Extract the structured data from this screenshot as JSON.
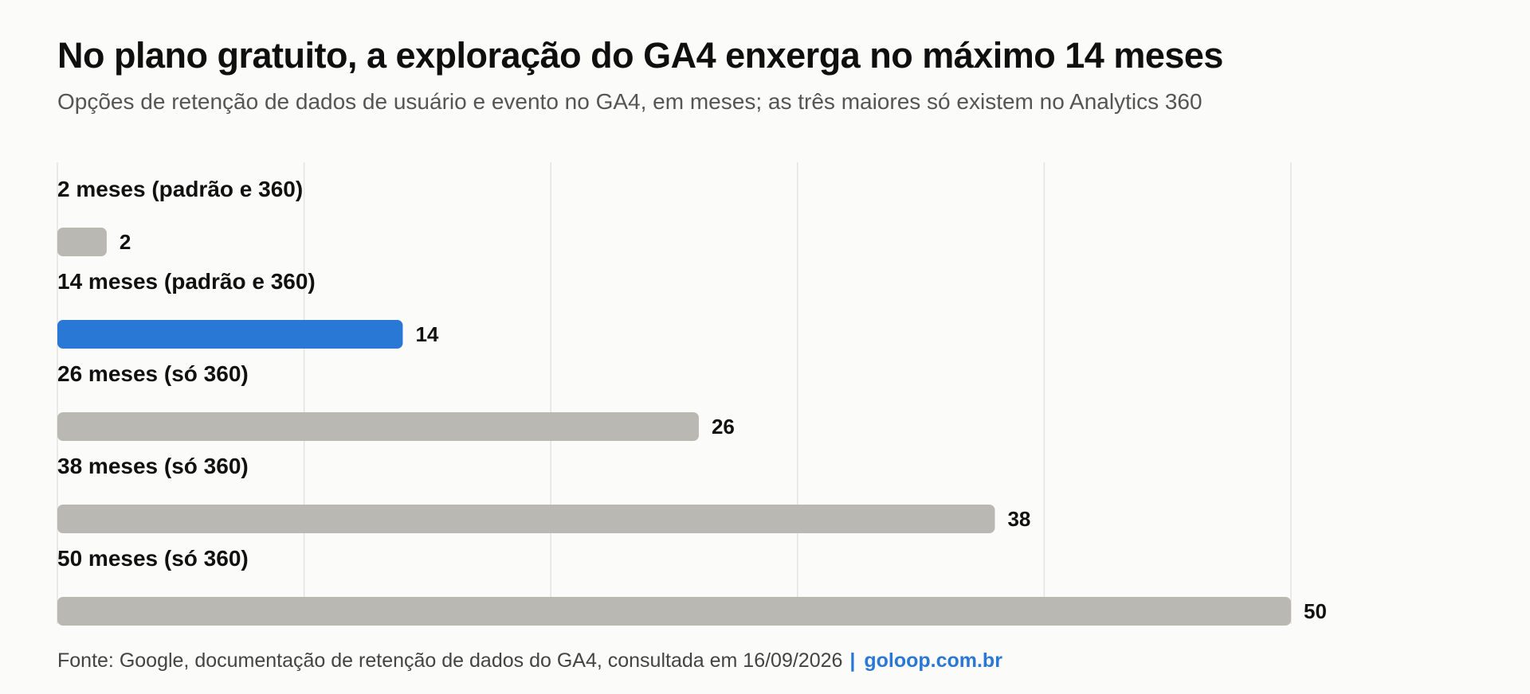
{
  "header": {
    "title": "No plano gratuito, a exploração do GA4 enxerga no máximo 14 meses",
    "subtitle": "Opções de retenção de dados de usuário e evento no GA4, em meses; as três maiores só existem no Analytics 360"
  },
  "footer": {
    "source": "Fonte: Google, documentação de retenção de dados do GA4, consultada em 16/09/2026",
    "separator": "|",
    "brand": "goloop.com.br"
  },
  "colors": {
    "highlight": "#2a78d6",
    "default": "#b9b8b3",
    "grid": "#e3e3e1",
    "text": "#111111"
  },
  "chart_data": {
    "type": "bar",
    "orientation": "horizontal",
    "categories": [
      "2 meses (padrão e 360)",
      "14 meses (padrão e 360)",
      "26 meses (só 360)",
      "38 meses (só 360)",
      "50 meses (só 360)"
    ],
    "values": [
      2,
      14,
      26,
      38,
      50
    ],
    "highlighted": [
      false,
      true,
      false,
      false,
      false
    ],
    "xlim": [
      0,
      50
    ],
    "grid": true,
    "data_labels": true
  }
}
